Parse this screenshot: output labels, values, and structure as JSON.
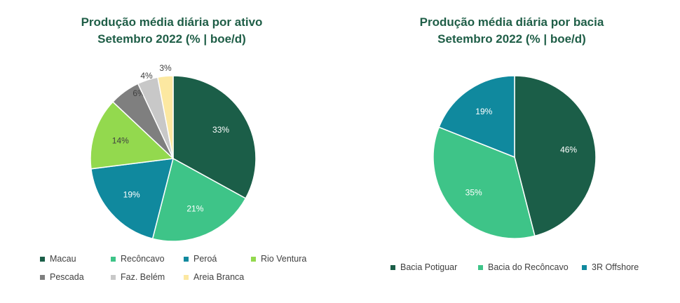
{
  "chart_data": [
    {
      "type": "pie",
      "title": "Produção média diária por ativo",
      "subtitle": "Setembro 2022 (% | boe/d)",
      "legend_position": "bottom",
      "slices": [
        {
          "name": "Macau",
          "value": 33,
          "label": "33%",
          "color": "#1b5e48"
        },
        {
          "name": "Recôncavo",
          "value": 21,
          "label": "21%",
          "color": "#3ec488"
        },
        {
          "name": "Peroá",
          "value": 19,
          "label": "19%",
          "color": "#10899e"
        },
        {
          "name": "Rio Ventura",
          "value": 14,
          "label": "14%",
          "color": "#93d94e"
        },
        {
          "name": "Pescada",
          "value": 6,
          "label": "6%",
          "color": "#7f7f7f"
        },
        {
          "name": "Faz. Belém",
          "value": 4,
          "label": "4%",
          "color": "#c8c8c8"
        },
        {
          "name": "Areia Branca",
          "value": 3,
          "label": "3%",
          "color": "#fce8a1"
        }
      ]
    },
    {
      "type": "pie",
      "title": "Produção média diária por bacia",
      "subtitle": "Setembro 2022 (% | boe/d)",
      "legend_position": "bottom",
      "slices": [
        {
          "name": "Bacia Potiguar",
          "value": 46,
          "label": "46%",
          "color": "#1b5e48"
        },
        {
          "name": "Bacia do Recôncavo",
          "value": 35,
          "label": "35%",
          "color": "#3ec488"
        },
        {
          "name": "3R Offshore",
          "value": 19,
          "label": "19%",
          "color": "#10899e"
        }
      ]
    }
  ]
}
